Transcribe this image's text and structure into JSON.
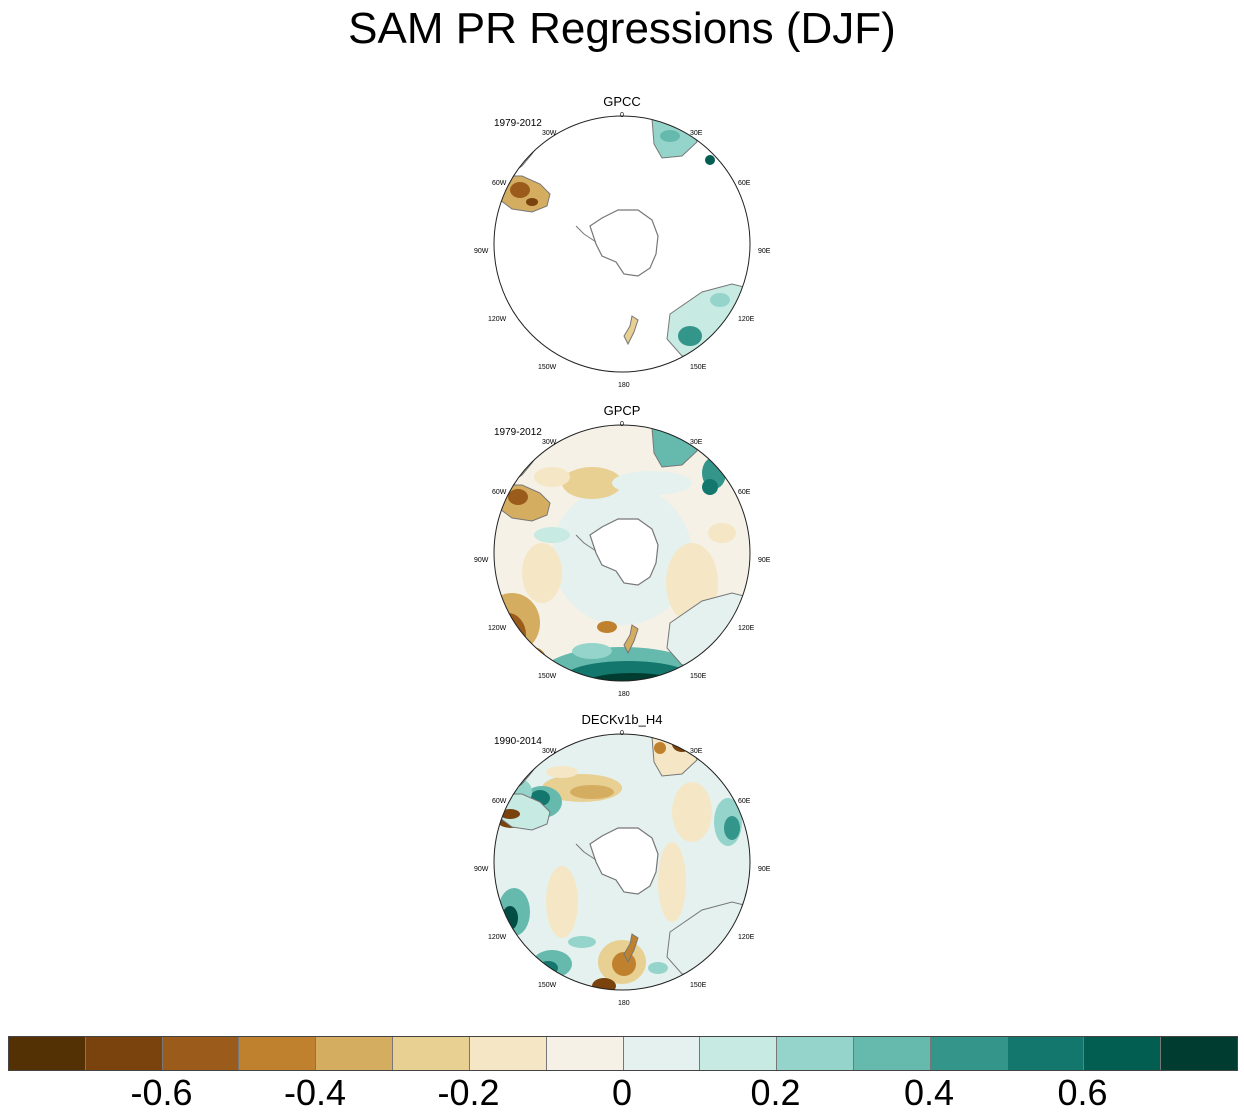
{
  "title": "SAM PR Regressions (DJF)",
  "lon_labels": {
    "l0": "0",
    "l30e": "30E",
    "l60e": "60E",
    "l90e": "90E",
    "l120e": "120E",
    "l150e": "150E",
    "l180": "180",
    "l150w": "150W",
    "l120w": "120W",
    "l90w": "90W",
    "l60w": "60W",
    "l30w": "30W"
  },
  "panels": [
    {
      "name": "GPCC",
      "period": "1979-2012"
    },
    {
      "name": "GPCP",
      "period": "1979-2012"
    },
    {
      "name": "DECKv1b_H4",
      "period": "1990-2014"
    }
  ],
  "colorbar": {
    "colors": [
      "#543005",
      "#7a420c",
      "#9b5b1b",
      "#bf812d",
      "#d5ad60",
      "#e8cf92",
      "#f5e7c5",
      "#f5f1e6",
      "#e4f1ef",
      "#c7eae3",
      "#95d4ca",
      "#66b9ad",
      "#34958b",
      "#13776d",
      "#035e52",
      "#003c30"
    ],
    "ticks": [
      "-0.6",
      "-0.4",
      "-0.2",
      "0",
      "0.2",
      "0.4",
      "0.6"
    ]
  }
}
